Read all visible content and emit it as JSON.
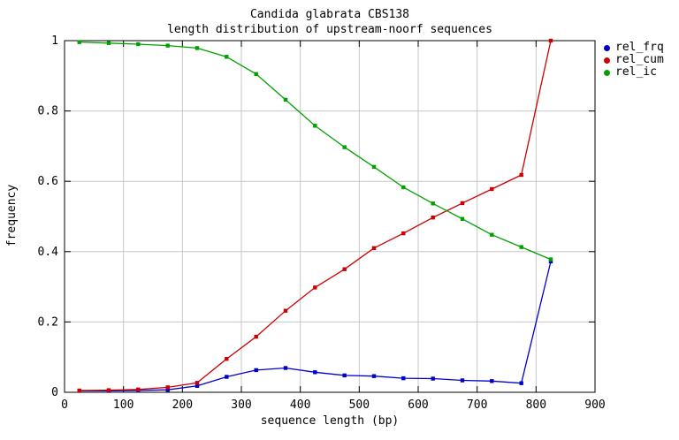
{
  "chart_data": {
    "type": "line",
    "title": "Candida glabrata CBS138",
    "subtitle": "length distribution of upstream-noorf sequences",
    "xlabel": "sequence length (bp)",
    "ylabel": "frequency",
    "xlim": [
      0,
      900
    ],
    "ylim": [
      0,
      1
    ],
    "grid": true,
    "legend_position": "outside-top-right",
    "x_ticks": [
      0,
      100,
      200,
      300,
      400,
      500,
      600,
      700,
      800,
      900
    ],
    "x_tick_labels": [
      "0",
      "100",
      "200",
      "300",
      "400",
      "500",
      "600",
      "700",
      "800",
      "900"
    ],
    "y_ticks": [
      0,
      0.2,
      0.4,
      0.6,
      0.8,
      1
    ],
    "y_tick_labels": [
      "0",
      "0.2",
      "0.4",
      "0.6",
      "0.8",
      "1"
    ],
    "x": [
      25,
      75,
      125,
      175,
      225,
      275,
      325,
      375,
      425,
      475,
      525,
      575,
      625,
      675,
      725,
      775,
      825
    ],
    "series": [
      {
        "name": "rel_frq",
        "color": "#0000cc",
        "values": [
          0.004,
          0.004,
          0.005,
          0.007,
          0.018,
          0.044,
          0.063,
          0.069,
          0.057,
          0.048,
          0.046,
          0.04,
          0.039,
          0.034,
          0.032,
          0.026,
          0.372
        ]
      },
      {
        "name": "rel_cum",
        "color": "#cc0000",
        "values": [
          0.005,
          0.006,
          0.008,
          0.014,
          0.027,
          0.095,
          0.158,
          0.232,
          0.298,
          0.35,
          0.41,
          0.452,
          0.497,
          0.538,
          0.578,
          0.618,
          1.0
        ]
      },
      {
        "name": "rel_ic",
        "color": "#00a000",
        "values": [
          0.996,
          0.993,
          0.99,
          0.986,
          0.979,
          0.954,
          0.905,
          0.832,
          0.758,
          0.697,
          0.641,
          0.583,
          0.537,
          0.493,
          0.448,
          0.413,
          0.378
        ]
      }
    ],
    "colors": {
      "grid": "#c6c6c6",
      "border": "#000000",
      "text": "#000000",
      "background": "#ffffff"
    }
  }
}
